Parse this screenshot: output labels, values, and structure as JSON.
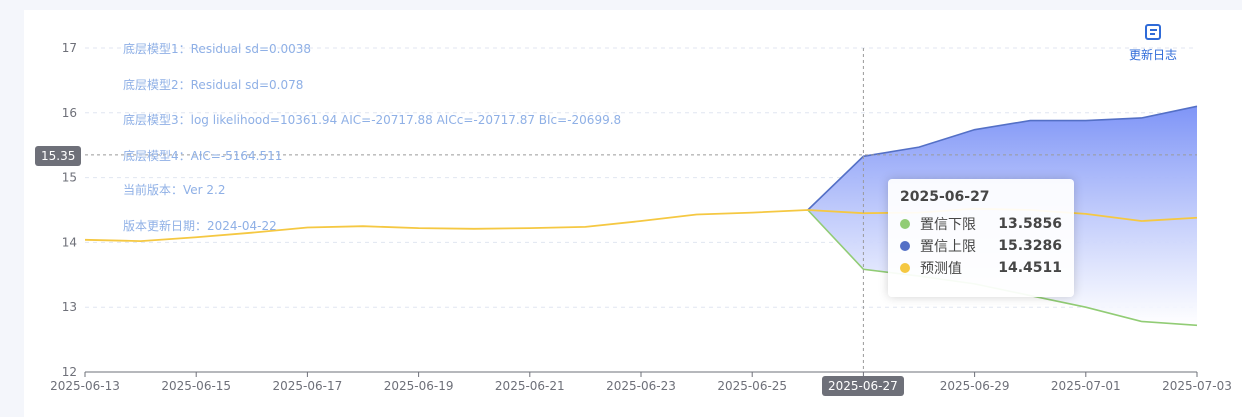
{
  "chart_data": {
    "type": "area",
    "x": [
      "2025-06-13",
      "2025-06-14",
      "2025-06-15",
      "2025-06-16",
      "2025-06-17",
      "2025-06-18",
      "2025-06-19",
      "2025-06-20",
      "2025-06-21",
      "2025-06-22",
      "2025-06-23",
      "2025-06-24",
      "2025-06-25",
      "2025-06-26",
      "2025-06-27",
      "2025-06-28",
      "2025-06-29",
      "2025-06-30",
      "2025-07-01",
      "2025-07-02",
      "2025-07-03"
    ],
    "x_tick_labels": [
      "2025-06-13",
      "2025-06-15",
      "2025-06-17",
      "2025-06-19",
      "2025-06-21",
      "2025-06-23",
      "2025-06-25",
      "2025-06-27",
      "2025-06-29",
      "2025-07-01",
      "2025-07-03"
    ],
    "ylim": [
      12,
      17
    ],
    "y_ticks": [
      12,
      13,
      14,
      15,
      16,
      17
    ],
    "grid": true,
    "series": [
      {
        "name": "预测值",
        "color": "#f5c842",
        "values": [
          14.04,
          14.02,
          14.08,
          14.15,
          14.23,
          14.25,
          14.22,
          14.21,
          14.22,
          14.24,
          14.33,
          14.43,
          14.46,
          14.5,
          14.4511,
          14.46,
          14.52,
          14.5,
          14.44,
          14.33,
          14.38
        ]
      },
      {
        "name": "置信上限",
        "color": "#5470c6",
        "values": [
          null,
          null,
          null,
          null,
          null,
          null,
          null,
          null,
          null,
          null,
          null,
          null,
          null,
          14.5,
          15.3286,
          15.47,
          15.74,
          15.88,
          15.88,
          15.92,
          16.1
        ]
      },
      {
        "name": "置信下限",
        "color": "#91cc75",
        "values": [
          null,
          null,
          null,
          null,
          null,
          null,
          null,
          null,
          null,
          null,
          null,
          null,
          null,
          14.5,
          13.5856,
          13.48,
          13.36,
          13.18,
          13.0,
          12.78,
          12.72
        ]
      }
    ],
    "annotations": [
      "底层模型1：Residual sd=0.0038",
      "底层模型2：Residual sd=0.078",
      "底层模型3：log likelihood=10361.94 AIC=-20717.88 AICc=-20717.87 BIc=-20699.8",
      "底层模型4：AIC=-5164.511",
      "当前版本：Ver 2.2",
      "版本更新日期：2024-04-22"
    ],
    "axis_pointer": {
      "y_label": "15.35",
      "y_value": 15.35,
      "x_label": "2025-06-27",
      "x_value": "2025-06-27"
    },
    "tooltip": {
      "title": "2025-06-27",
      "rows": [
        {
          "name": "置信下限",
          "value": "13.5856",
          "color": "#91cc75"
        },
        {
          "name": "置信上限",
          "value": "15.3286",
          "color": "#5470c6"
        },
        {
          "name": "预测值",
          "value": "14.4511",
          "color": "#f5c842"
        }
      ]
    },
    "band_fill_top": "#7f95f7",
    "band_fill_bottom": "#ffffff"
  },
  "toolbar": {
    "changelog_label": "更新日志",
    "changelog_icon": "document-icon"
  }
}
